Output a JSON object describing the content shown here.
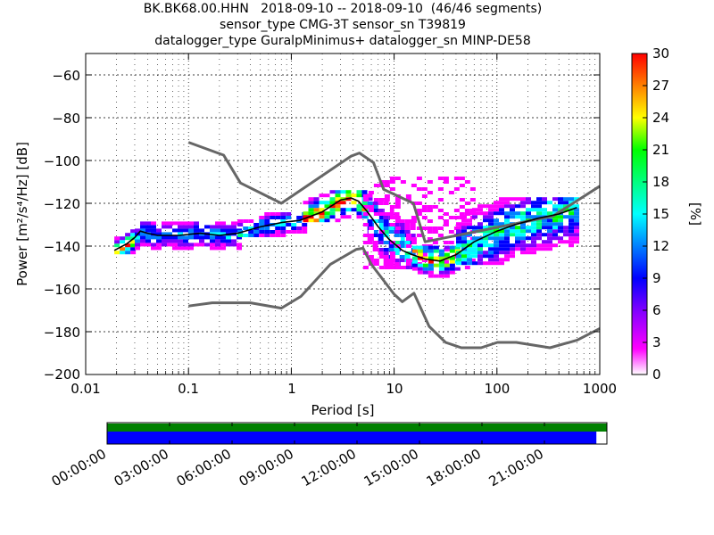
{
  "chart_data": {
    "type": "heatmap",
    "title_lines": [
      "BK.BK68.00.HHN   2018-09-10 -- 2018-09-10  (46/46 segments)",
      "sensor_type CMG-3T sensor_sn T39819",
      "datalogger_type GuralpMinimus+ datalogger_sn MINP-DE58"
    ],
    "xlabel": "Period [s]",
    "ylabel": "Power [m²/s⁴/Hz] [dB]",
    "xscale": "log",
    "xlim": [
      0.01,
      1000
    ],
    "ylim": [
      -200,
      -50
    ],
    "x_ticks": [
      0.01,
      0.1,
      1,
      10,
      100,
      1000
    ],
    "x_tick_labels": [
      "0.01",
      "0.1",
      "1",
      "10",
      "100",
      "1000"
    ],
    "y_ticks": [
      -60,
      -80,
      -100,
      -120,
      -140,
      -160,
      -180,
      -200
    ],
    "y_tick_labels": [
      "−60",
      "−80",
      "−100",
      "−120",
      "−140",
      "−160",
      "−180",
      "−200"
    ],
    "grid": true,
    "colorbar": {
      "label": "[%]",
      "range": [
        0,
        30
      ],
      "ticks": [
        0,
        3,
        6,
        9,
        12,
        15,
        18,
        21,
        24,
        27,
        30
      ],
      "tick_labels": [
        "0",
        "3",
        "6",
        "9",
        "12",
        "15",
        "18",
        "21",
        "24",
        "27",
        "30"
      ],
      "colors": [
        "#ffffff",
        "#ff00ff",
        "#8000ff",
        "#0000ff",
        "#0080ff",
        "#00ffff",
        "#00ff80",
        "#00ff00",
        "#80ff00",
        "#ffff00",
        "#ff8000",
        "#ff0000"
      ]
    },
    "series": [
      {
        "name": "high-noise-model",
        "color": "#666666",
        "x": [
          0.1,
          0.22,
          0.32,
          0.8,
          3.8,
          4.6,
          6.3,
          7.9,
          15.4,
          20,
          350,
          1000
        ],
        "y": [
          -91.5,
          -97.5,
          -110.5,
          -120,
          -98,
          -96.5,
          -101,
          -113.5,
          -120,
          -138,
          -126,
          -112
        ]
      },
      {
        "name": "low-noise-model",
        "color": "#666666",
        "x": [
          0.1,
          0.17,
          0.4,
          0.8,
          1.24,
          2.4,
          4.3,
          5,
          6,
          10,
          12,
          15.6,
          21.9,
          31.6,
          45,
          70,
          101,
          154,
          328,
          600,
          1000
        ],
        "y": [
          -168,
          -166.5,
          -166.5,
          -169,
          -163.5,
          -148.5,
          -141.5,
          -141,
          -148.5,
          -162.5,
          -166,
          -162,
          -177.5,
          -185,
          -187.5,
          -187.5,
          -185,
          -185,
          -187.5,
          -184,
          -178.5
        ]
      },
      {
        "name": "mean-psd",
        "color": "#000000",
        "x": [
          0.019,
          0.025,
          0.03,
          0.034,
          0.04,
          0.05,
          0.08,
          0.13,
          0.2,
          0.3,
          0.5,
          0.8,
          1.2,
          2,
          3,
          3.8,
          4.5,
          5.5,
          7,
          9,
          12,
          15,
          20,
          28,
          40,
          60,
          100,
          150,
          250,
          400,
          600
        ],
        "y": [
          -142,
          -139,
          -136,
          -133,
          -134,
          -135,
          -135,
          -134,
          -135,
          -134,
          -131,
          -129,
          -128,
          -124,
          -118.5,
          -117.5,
          -119,
          -124,
          -131,
          -137,
          -142,
          -144,
          -146,
          -147,
          -144,
          -138,
          -133,
          -130,
          -127,
          -125,
          -122
        ]
      }
    ],
    "density_bands": [
      {
        "x": [
          0.019,
          0.03
        ],
        "y": [
          -143,
          -133
        ],
        "peak": 28
      },
      {
        "x": [
          0.03,
          0.3
        ],
        "y": [
          -141,
          -128
        ],
        "peak": 12
      },
      {
        "x": [
          0.3,
          1.3
        ],
        "y": [
          -135,
          -124
        ],
        "peak": 14
      },
      {
        "x": [
          1.3,
          5.5
        ],
        "y": [
          -128,
          -113
        ],
        "peak": 28
      },
      {
        "x": [
          5.5,
          15
        ],
        "y": [
          -150,
          -120
        ],
        "peak": 14
      },
      {
        "x": [
          5,
          60
        ],
        "y": [
          -150,
          -107
        ],
        "peak": 3
      },
      {
        "x": [
          15,
          40
        ],
        "y": [
          -154,
          -140
        ],
        "peak": 27
      },
      {
        "x": [
          40,
          600
        ],
        "y": [
          -148,
          -117
        ],
        "peak": 16
      }
    ]
  },
  "timeline": {
    "segments_bar_fraction": 1.0,
    "data_bar_fraction": 0.979,
    "colors": {
      "segments": "#008000",
      "data": "#0000ff"
    },
    "tick_labels": [
      "00:00:00",
      "03:00:00",
      "06:00:00",
      "09:00:00",
      "12:00:00",
      "15:00:00",
      "18:00:00",
      "21:00:00"
    ]
  }
}
